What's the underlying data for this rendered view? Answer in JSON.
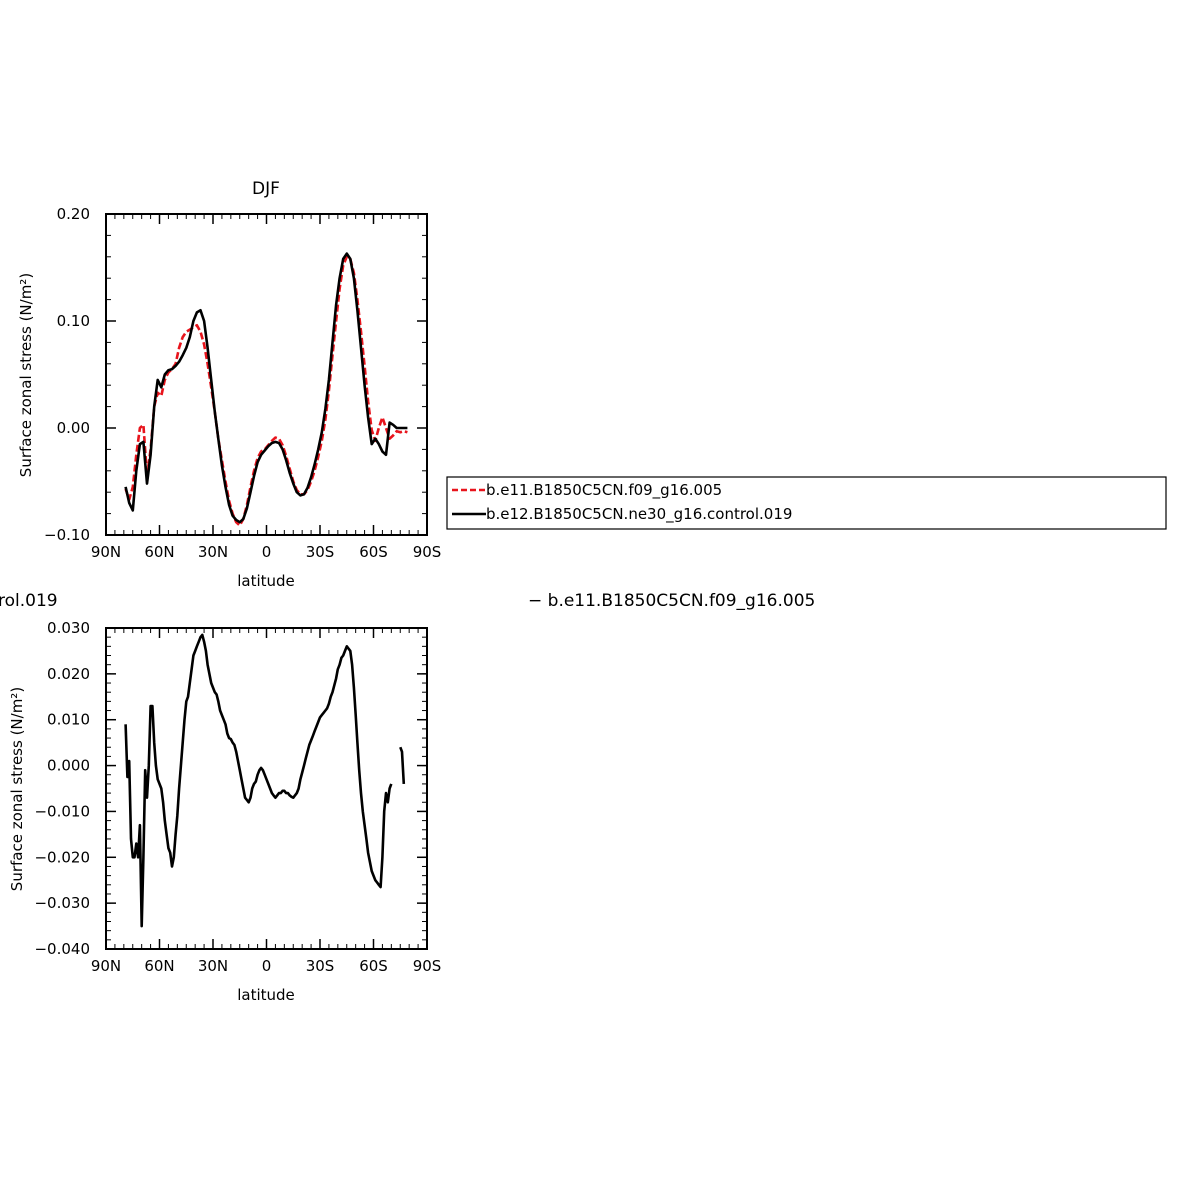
{
  "colors": {
    "control": "#000000",
    "case": "#e8141c",
    "axis": "#000000"
  },
  "top_panel": {
    "title": "DJF",
    "ylabel": "Surface zonal stress (N/m²)",
    "xlabel": "latitude",
    "yticks": [
      "0.20",
      "0.10",
      "0.00",
      "−0.10"
    ],
    "xticks": [
      "90N",
      "60N",
      "30N",
      "0",
      "30S",
      "60S",
      "90S"
    ]
  },
  "legend": {
    "case_label": "b.e11.B1850C5CN.f09_g16.005",
    "control_label": "b.e12.B1850C5CN.ne30_g16.control.019"
  },
  "bottom_panel": {
    "title_left": "rol.019",
    "title_right": "− b.e11.B1850C5CN.f09_g16.005",
    "ylabel": "Surface zonal stress (N/m²)",
    "xlabel": "latitude",
    "yticks": [
      "0.030",
      "0.020",
      "0.010",
      "0.000",
      "−0.010",
      "−0.020",
      "−0.030",
      "−0.040"
    ],
    "xticks": [
      "90N",
      "60N",
      "30N",
      "0",
      "30S",
      "60S",
      "90S"
    ]
  },
  "chart_data": [
    {
      "type": "line",
      "title": "DJF",
      "xlabel": "latitude",
      "ylabel": "Surface zonal stress (N/m²)",
      "xlim": [
        90,
        -90
      ],
      "ylim": [
        -0.1,
        0.2
      ],
      "series": [
        {
          "name": "b.e11.B1850C5CN.f09_g16.005",
          "style": "dashed",
          "color": "#e8141c",
          "x": [
            79,
            77,
            75,
            73,
            71,
            69,
            67,
            65,
            63,
            61,
            59,
            57,
            55,
            53,
            51,
            49,
            47,
            45,
            43,
            41,
            39,
            37,
            35,
            33,
            31,
            29,
            27,
            25,
            23,
            21,
            19,
            17,
            15,
            13,
            11,
            9,
            7,
            5,
            3,
            1,
            -1,
            -3,
            -5,
            -7,
            -9,
            -11,
            -13,
            -15,
            -17,
            -19,
            -21,
            -23,
            -25,
            -27,
            -29,
            -31,
            -33,
            -35,
            -37,
            -39,
            -41,
            -43,
            -45,
            -47,
            -49,
            -51,
            -53,
            -55,
            -57,
            -59,
            -61,
            -63,
            -65,
            -67,
            -69,
            -71,
            -73,
            -75,
            -77,
            -79
          ],
          "y": [
            -0.057,
            -0.067,
            -0.055,
            -0.025,
            0.0,
            0.003,
            -0.045,
            -0.02,
            0.02,
            0.033,
            0.03,
            0.045,
            0.052,
            0.055,
            0.06,
            0.075,
            0.085,
            0.09,
            0.092,
            0.094,
            0.096,
            0.09,
            0.078,
            0.06,
            0.038,
            0.015,
            -0.01,
            -0.03,
            -0.05,
            -0.068,
            -0.08,
            -0.088,
            -0.091,
            -0.085,
            -0.072,
            -0.055,
            -0.04,
            -0.028,
            -0.022,
            -0.02,
            -0.016,
            -0.012,
            -0.009,
            -0.01,
            -0.016,
            -0.026,
            -0.038,
            -0.05,
            -0.058,
            -0.062,
            -0.062,
            -0.058,
            -0.05,
            -0.04,
            -0.027,
            -0.012,
            0.008,
            0.035,
            0.068,
            0.1,
            0.13,
            0.152,
            0.16,
            0.158,
            0.145,
            0.12,
            0.09,
            0.058,
            0.025,
            -0.002,
            -0.012,
            0.0,
            0.01,
            0.0,
            -0.01,
            -0.007,
            -0.003,
            -0.004,
            -0.003,
            -0.004
          ]
        },
        {
          "name": "b.e12.B1850C5CN.ne30_g16.control.019",
          "style": "solid",
          "color": "#000000",
          "x": [
            79,
            77,
            75,
            73,
            71,
            69,
            67,
            65,
            63,
            61,
            59,
            57,
            55,
            53,
            51,
            49,
            47,
            45,
            43,
            41,
            39,
            37,
            35,
            33,
            31,
            29,
            27,
            25,
            23,
            21,
            19,
            17,
            15,
            13,
            11,
            9,
            7,
            5,
            3,
            1,
            -1,
            -3,
            -5,
            -7,
            -9,
            -11,
            -13,
            -15,
            -17,
            -19,
            -21,
            -23,
            -25,
            -27,
            -29,
            -31,
            -33,
            -35,
            -37,
            -39,
            -41,
            -43,
            -45,
            -47,
            -49,
            -51,
            -53,
            -55,
            -57,
            -59,
            -61,
            -63,
            -65,
            -67,
            -69,
            -71,
            -73,
            -75,
            -77,
            -79
          ],
          "y": [
            -0.055,
            -0.07,
            -0.077,
            -0.04,
            -0.015,
            -0.013,
            -0.052,
            -0.025,
            0.02,
            0.045,
            0.038,
            0.05,
            0.054,
            0.055,
            0.058,
            0.062,
            0.068,
            0.075,
            0.085,
            0.1,
            0.108,
            0.11,
            0.1,
            0.075,
            0.045,
            0.015,
            -0.01,
            -0.035,
            -0.055,
            -0.072,
            -0.082,
            -0.086,
            -0.088,
            -0.085,
            -0.075,
            -0.06,
            -0.045,
            -0.032,
            -0.025,
            -0.021,
            -0.017,
            -0.014,
            -0.013,
            -0.014,
            -0.02,
            -0.03,
            -0.042,
            -0.052,
            -0.06,
            -0.063,
            -0.062,
            -0.056,
            -0.046,
            -0.034,
            -0.02,
            -0.004,
            0.018,
            0.045,
            0.08,
            0.115,
            0.14,
            0.158,
            0.163,
            0.158,
            0.14,
            0.11,
            0.075,
            0.04,
            0.01,
            -0.015,
            -0.01,
            -0.015,
            -0.022,
            -0.025,
            0.005,
            0.003,
            0.0,
            0.0,
            0.0,
            0.0
          ]
        }
      ]
    },
    {
      "type": "line",
      "title": "rol.019 − b.e11.B1850C5CN.f09_g16.005",
      "xlabel": "latitude",
      "ylabel": "Surface zonal stress (N/m²)",
      "xlim": [
        90,
        -90
      ],
      "ylim": [
        -0.04,
        0.03
      ],
      "series": [
        {
          "color": "#000000",
          "style": "solid",
          "x": [
            79,
            78,
            77,
            76,
            75,
            74,
            73,
            72,
            71,
            70,
            69,
            68,
            67,
            66,
            65,
            64,
            63,
            62,
            61,
            60,
            59,
            58,
            57,
            56,
            55,
            54,
            53,
            52,
            51,
            50,
            49,
            48,
            47,
            46,
            45,
            44,
            43,
            42,
            41,
            40,
            39,
            38,
            37,
            36,
            35,
            34,
            33,
            32,
            31,
            30,
            29,
            28,
            27,
            26,
            25,
            24,
            23,
            22,
            21,
            20,
            19,
            18,
            17,
            16,
            15,
            14,
            13,
            12,
            11,
            10,
            9,
            8,
            7,
            6,
            5,
            4,
            3,
            2,
            1,
            0,
            -1,
            -2,
            -3,
            -4,
            -5,
            -6,
            -7,
            -8,
            -9,
            -10,
            -11,
            -12,
            -13,
            -14,
            -15,
            -16,
            -17,
            -18,
            -19,
            -20,
            -21,
            -22,
            -23,
            -24,
            -25,
            -26,
            -27,
            -28,
            -29,
            -30,
            -31,
            -32,
            -33,
            -34,
            -35,
            -36,
            -37,
            -38,
            -39,
            -40,
            -41,
            -42,
            -43,
            -44,
            -45,
            -46,
            -47,
            -48,
            -49,
            -50,
            -51,
            -52,
            -53,
            -54,
            -55,
            -56,
            -57,
            -58,
            -59,
            -60,
            -61,
            -62,
            -63,
            -64,
            -65,
            -66,
            -67,
            -68,
            -69,
            -70
          ],
          "y": [
            0.009,
            -0.0025,
            0.001,
            -0.016,
            -0.02,
            -0.02,
            -0.017,
            -0.02,
            -0.013,
            -0.035,
            -0.02,
            -0.001,
            -0.007,
            0.0,
            0.013,
            0.013,
            0.005,
            0.0,
            -0.003,
            -0.004,
            -0.005,
            -0.008,
            -0.012,
            -0.015,
            -0.018,
            -0.019,
            -0.022,
            -0.02,
            -0.015,
            -0.011,
            -0.005,
            0.0,
            0.005,
            0.01,
            0.014,
            0.015,
            0.018,
            0.021,
            0.024,
            0.025,
            0.026,
            0.027,
            0.028,
            0.0285,
            0.027,
            0.025,
            0.022,
            0.02,
            0.018,
            0.017,
            0.016,
            0.0155,
            0.014,
            0.012,
            0.011,
            0.01,
            0.009,
            0.007,
            0.006,
            0.0058,
            0.005,
            0.0045,
            0.003,
            0.001,
            -0.001,
            -0.003,
            -0.005,
            -0.007,
            -0.0075,
            -0.008,
            -0.007,
            -0.005,
            -0.004,
            -0.0035,
            -0.002,
            -0.001,
            -0.0005,
            -0.001,
            -0.002,
            -0.003,
            -0.004,
            -0.005,
            -0.006,
            -0.0065,
            -0.007,
            -0.0065,
            -0.006,
            -0.006,
            -0.0055,
            -0.0055,
            -0.006,
            -0.006,
            -0.0065,
            -0.0068,
            -0.007,
            -0.0065,
            -0.006,
            -0.005,
            -0.003,
            -0.0015,
            0.0,
            0.0015,
            0.003,
            0.0045,
            0.0055,
            0.0065,
            0.0075,
            0.0085,
            0.0095,
            0.0105,
            0.011,
            0.0115,
            0.012,
            0.0125,
            0.0135,
            0.015,
            0.016,
            0.0175,
            0.019,
            0.021,
            0.022,
            0.0235,
            0.024,
            0.025,
            0.026,
            0.0255,
            0.025,
            0.022,
            0.017,
            0.011,
            0.005,
            -0.001,
            -0.006,
            -0.01,
            -0.013,
            -0.016,
            -0.019,
            -0.021,
            -0.023,
            -0.024,
            -0.025,
            -0.0255,
            -0.026,
            -0.0265,
            -0.02,
            -0.01,
            -0.006,
            -0.008,
            -0.005,
            -0.004
          ],
          "x_extra": [
            -69,
            -68,
            -67,
            -66
          ],
          "y_extra": [
            -0.011,
            0.0,
            0.0,
            0.0
          ]
        }
      ]
    }
  ]
}
